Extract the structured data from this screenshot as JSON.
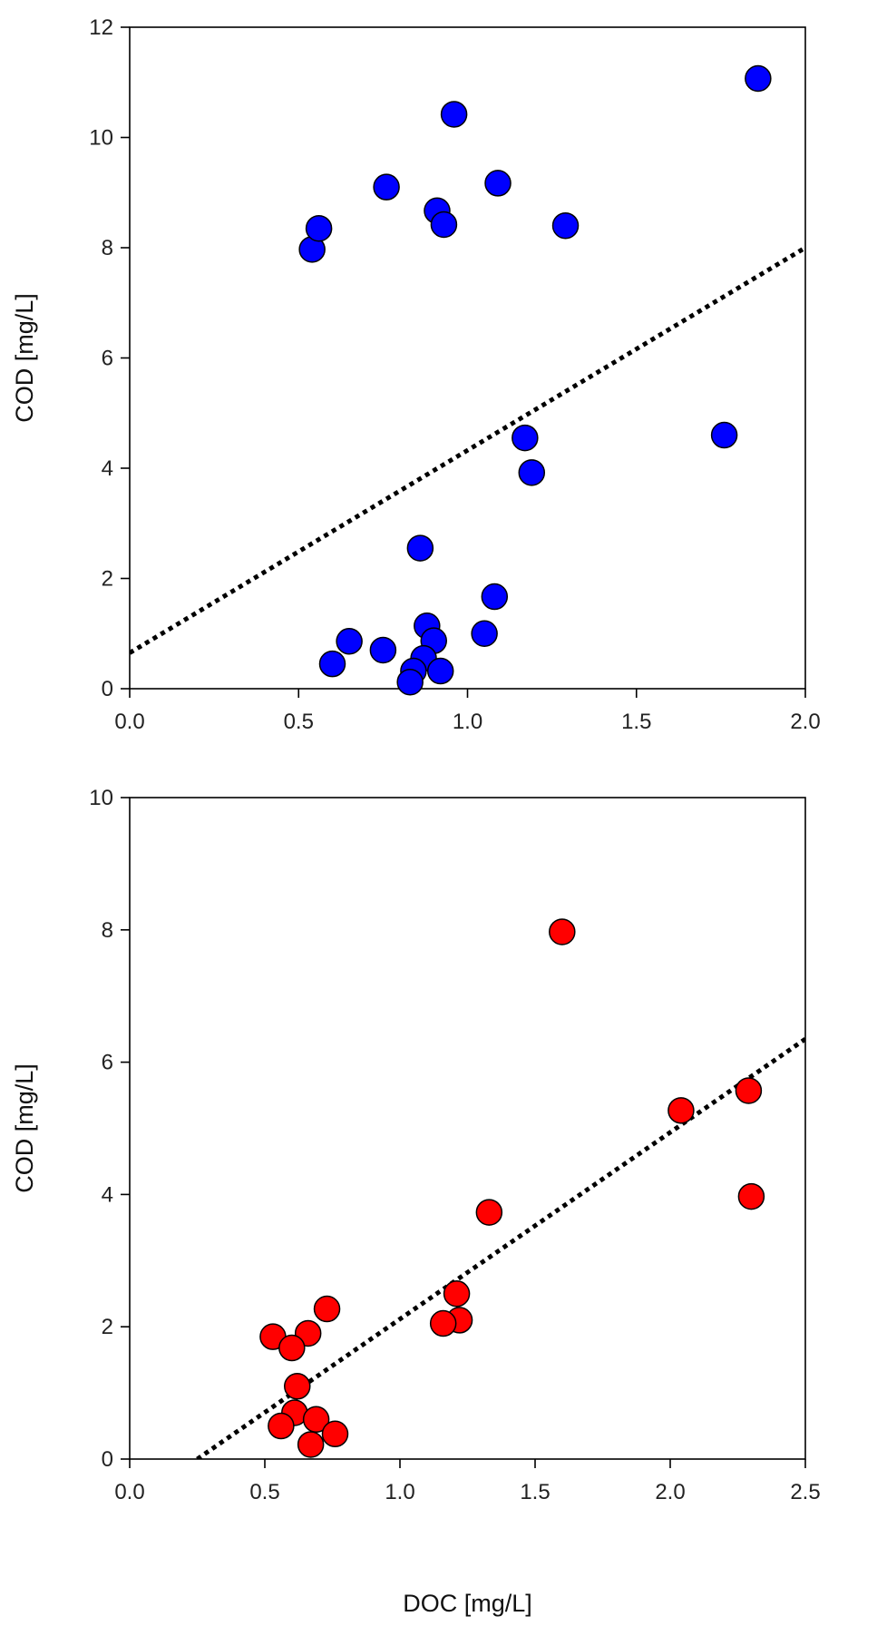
{
  "chart_data": [
    {
      "type": "scatter",
      "title": "",
      "xlabel": "",
      "ylabel": "COD [mg/L]",
      "xlim": [
        0,
        2
      ],
      "ylim": [
        0,
        12
      ],
      "xticks": [
        "0.0",
        "0.5",
        "1.0",
        "1.5",
        "2.0"
      ],
      "yticks": [
        "0",
        "2",
        "4",
        "6",
        "8",
        "10",
        "12"
      ],
      "grid": false,
      "marker_color": "#0000ff",
      "marker_edge": "#000000",
      "trendline": {
        "style": "dotted",
        "x": [
          0.0,
          2.0
        ],
        "y": [
          0.65,
          8.0
        ]
      },
      "series": [
        {
          "name": "",
          "x": [
            0.54,
            0.56,
            0.76,
            0.91,
            0.96,
            0.93,
            1.09,
            1.29,
            1.86,
            1.17,
            1.19,
            1.76,
            0.86,
            1.08,
            1.05,
            0.6,
            0.65,
            0.75,
            0.88,
            0.9,
            0.87,
            0.84,
            0.83,
            0.92
          ],
          "y": [
            7.97,
            8.35,
            9.1,
            8.67,
            10.42,
            8.42,
            9.17,
            8.4,
            11.07,
            4.55,
            3.92,
            4.6,
            2.55,
            1.67,
            1.0,
            0.45,
            0.86,
            0.7,
            1.14,
            0.87,
            0.55,
            0.32,
            0.12,
            0.32
          ]
        }
      ]
    },
    {
      "type": "scatter",
      "title": "",
      "xlabel": "DOC [mg/L]",
      "ylabel": "COD [mg/L]",
      "xlim": [
        0,
        2.5
      ],
      "ylim": [
        0,
        10
      ],
      "xticks": [
        "0.0",
        "0.5",
        "1.0",
        "1.5",
        "2.0",
        "2.5"
      ],
      "yticks": [
        "0",
        "2",
        "4",
        "6",
        "8",
        "10"
      ],
      "grid": false,
      "marker_color": "#ff0000",
      "marker_edge": "#000000",
      "trendline": {
        "style": "dotted",
        "x": [
          0.25,
          2.5
        ],
        "y": [
          0.0,
          6.35
        ]
      },
      "series": [
        {
          "name": "",
          "x": [
            1.6,
            2.04,
            2.29,
            2.3,
            1.33,
            1.21,
            1.22,
            1.16,
            0.73,
            0.53,
            0.66,
            0.6,
            0.62,
            0.61,
            0.56,
            0.69,
            0.67,
            0.76
          ],
          "y": [
            7.97,
            5.27,
            5.57,
            3.97,
            3.73,
            2.5,
            2.1,
            2.05,
            2.27,
            1.85,
            1.9,
            1.68,
            1.1,
            0.7,
            0.5,
            0.6,
            0.22,
            0.38
          ]
        }
      ]
    }
  ]
}
